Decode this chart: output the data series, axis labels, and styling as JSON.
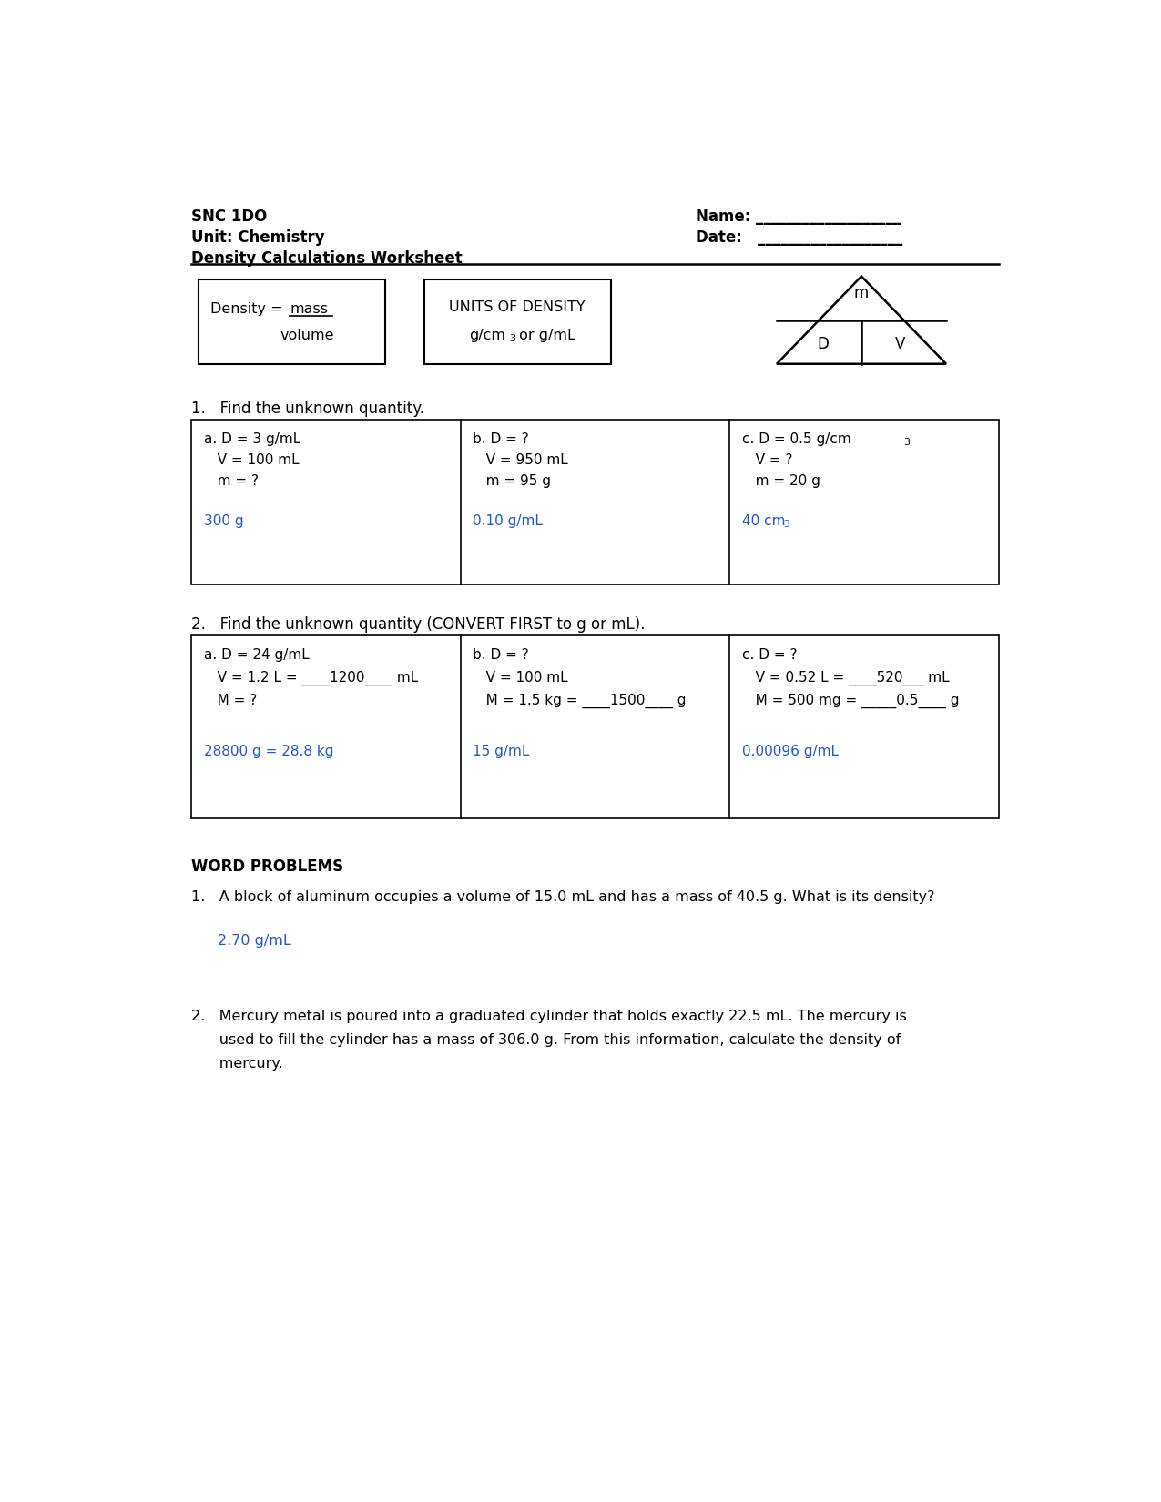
{
  "title_line1": "SNC 1DO",
  "title_line2": "Unit: Chemistry",
  "title_line3": "Density Calculations Worksheet",
  "name_label": "Name: ___________________",
  "date_label": "Date:   ___________________",
  "units_line1": "UNITS OF DENSITY",
  "units_line2": "g/cm³ or g/mL",
  "q1_header": "1.   Find the unknown quantity.",
  "q1a_black": [
    "a. D = 3 g/mL",
    "   V = 100 mL",
    "   m = ?"
  ],
  "q1a_blue": "300 g",
  "q1b_black": [
    "b. D = ?",
    "   V = 950 mL",
    "   m = 95 g"
  ],
  "q1b_blue": "0.10 g/mL",
  "q1c_black_pre": "c. D = 0.5 g/cm",
  "q1c_black_rest": [
    "   V = ?",
    "   m = 20 g"
  ],
  "q1c_blue_pre": "40 cm",
  "q2_header": "2.   Find the unknown quantity (CONVERT FIRST to g or mL).",
  "q2a_black": [
    "a. D = 24 g/mL",
    "   V = 1.2 L = ____1200____ mL",
    "   M = ?"
  ],
  "q2a_blue": "28800 g = 28.8 kg",
  "q2b_black": [
    "b. D = ?",
    "   V = 100 mL",
    "   M = 1.5 kg = ____1500____ g"
  ],
  "q2b_blue": "15 g/mL",
  "q2c_black": [
    "c. D = ?",
    "   V = 0.52 L = ____520___ mL",
    "   M = 500 mg = _____0.5____ g"
  ],
  "q2c_blue": "0.00096 g/mL",
  "word_problems_header": "WORD PROBLEMS",
  "wp1": "1.   A block of aluminum occupies a volume of 15.0 mL and has a mass of 40.5 g. What is its density?",
  "wp1_blue": "2.70 g/mL",
  "wp2_line1": "2.   Mercury metal is poured into a graduated cylinder that holds exactly 22.5 mL. The mercury is",
  "wp2_line2": "      used to fill the cylinder has a mass of 306.0 g. From this information, calculate the density of",
  "wp2_line3": "      mercury.",
  "blue_color": "#2255CC",
  "black_color": "#000000",
  "bg_color": "#FFFFFF"
}
